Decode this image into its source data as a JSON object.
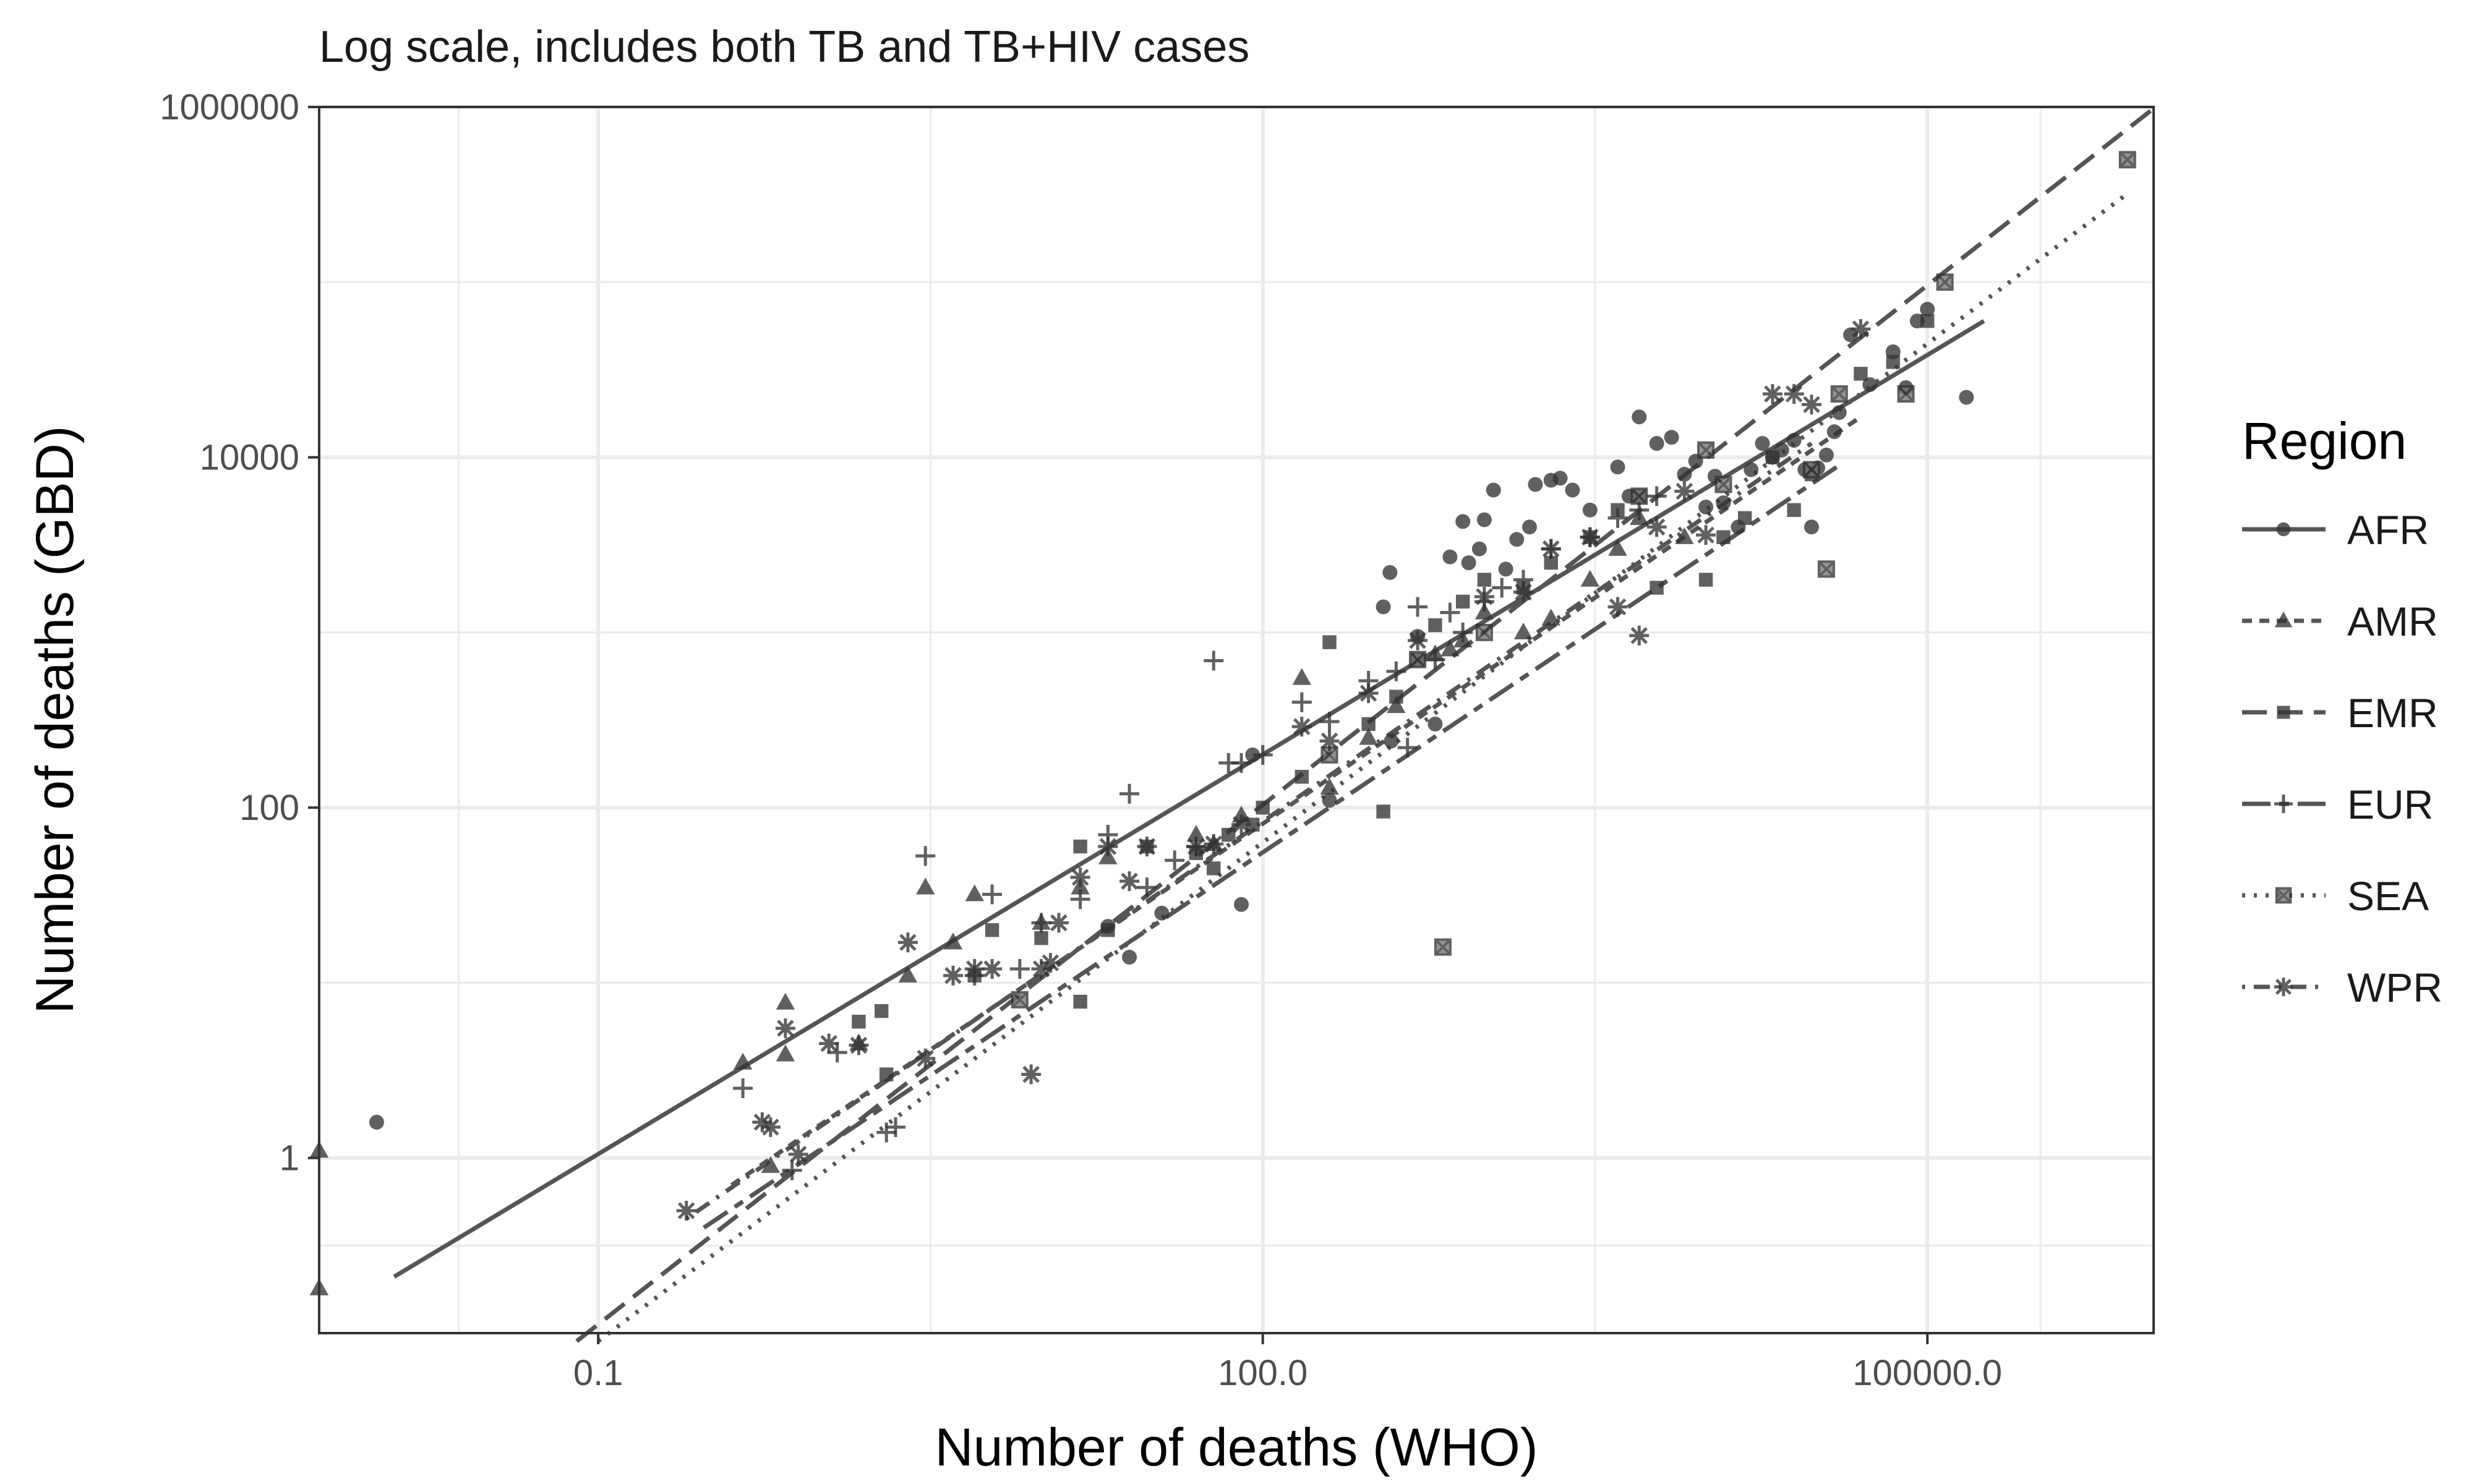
{
  "chart_data": {
    "type": "scatter",
    "subtitle": "Log scale, includes both TB and TB+HIV cases",
    "xlabel": "Number of deaths (WHO)",
    "ylabel": "Number of deaths (GBD)",
    "x_scale": "log10",
    "y_scale": "log10",
    "xlim": [
      0.0055,
      1050000
    ],
    "ylim": [
      0.1,
      1000000
    ],
    "x_ticks": [
      {
        "value": 0.1,
        "label": "0.1"
      },
      {
        "value": 100,
        "label": "100.0"
      },
      {
        "value": 100000,
        "label": "100000.0"
      }
    ],
    "y_ticks": [
      {
        "value": 1,
        "label": "1"
      },
      {
        "value": 100,
        "label": "100"
      },
      {
        "value": 10000,
        "label": "10000"
      },
      {
        "value": 1000000,
        "label": "1000000"
      }
    ],
    "grid": true,
    "legend": {
      "title": "Region",
      "position": "right"
    },
    "series": [
      {
        "name": "AFR",
        "marker": "circle",
        "linetype": "solid",
        "fit": [
          [
            0.012,
            0.21
          ],
          [
            180000,
            60000
          ]
        ],
        "points": [
          [
            0.01,
            1.6
          ],
          [
            20,
            21
          ],
          [
            25,
            14
          ],
          [
            35,
            25
          ],
          [
            80,
            28
          ],
          [
            90,
            200
          ],
          [
            200,
            110
          ],
          [
            350,
            1400
          ],
          [
            375,
            2200
          ],
          [
            380,
            240
          ],
          [
            500,
            950
          ],
          [
            600,
            300
          ],
          [
            700,
            2700
          ],
          [
            800,
            4300
          ],
          [
            850,
            2500
          ],
          [
            950,
            3000
          ],
          [
            1000,
            4400
          ],
          [
            1100,
            6500
          ],
          [
            1250,
            2300
          ],
          [
            1400,
            3400
          ],
          [
            1600,
            4000
          ],
          [
            1700,
            7000
          ],
          [
            2000,
            7400
          ],
          [
            2200,
            7600
          ],
          [
            2500,
            6500
          ],
          [
            3000,
            5000
          ],
          [
            4000,
            8800
          ],
          [
            4500,
            6000
          ],
          [
            5000,
            17000
          ],
          [
            6000,
            12000
          ],
          [
            7000,
            13000
          ],
          [
            8000,
            8000
          ],
          [
            9000,
            9500
          ],
          [
            10000,
            5200
          ],
          [
            11000,
            7800
          ],
          [
            12000,
            5500
          ],
          [
            14000,
            4000
          ],
          [
            16000,
            8500
          ],
          [
            18000,
            12000
          ],
          [
            20000,
            10000
          ],
          [
            22000,
            11000
          ],
          [
            25000,
            12500
          ],
          [
            28000,
            8500
          ],
          [
            30000,
            4000
          ],
          [
            32000,
            8700
          ],
          [
            35000,
            10300
          ],
          [
            38000,
            14000
          ],
          [
            40000,
            18000
          ],
          [
            45000,
            50000
          ],
          [
            55000,
            26000
          ],
          [
            70000,
            40000
          ],
          [
            80000,
            25000
          ],
          [
            90000,
            60000
          ],
          [
            100000,
            70000
          ],
          [
            150000,
            22000
          ]
        ]
      },
      {
        "name": "AMR",
        "marker": "triangle",
        "linetype": "dashed",
        "fit": [
          [
            0.4,
            0.7
          ],
          [
            50000,
            17000
          ]
        ],
        "points": [
          [
            0.0055,
            1.1
          ],
          [
            0.0055,
            0.18
          ],
          [
            0.45,
            3.5
          ],
          [
            0.6,
            0.9
          ],
          [
            0.7,
            7.7
          ],
          [
            0.7,
            3.9
          ],
          [
            1.5,
            4.5
          ],
          [
            2.5,
            11
          ],
          [
            3,
            35
          ],
          [
            4,
            17
          ],
          [
            5,
            32
          ],
          [
            10,
            22
          ],
          [
            15,
            35
          ],
          [
            20,
            52
          ],
          [
            50,
            70
          ],
          [
            60,
            62
          ],
          [
            80,
            90
          ],
          [
            150,
            550
          ],
          [
            200,
            130
          ],
          [
            300,
            250
          ],
          [
            400,
            380
          ],
          [
            600,
            750
          ],
          [
            700,
            800
          ],
          [
            800,
            900
          ],
          [
            1000,
            1300
          ],
          [
            1500,
            1000
          ],
          [
            2000,
            1200
          ],
          [
            3000,
            2000
          ],
          [
            4000,
            3000
          ],
          [
            5000,
            4500
          ],
          [
            8000,
            3500
          ]
        ]
      },
      {
        "name": "EMR",
        "marker": "square",
        "linetype": "longdash",
        "fit": [
          [
            0.08,
            0.09
          ],
          [
            1050000,
            980000
          ]
        ],
        "points": [
          [
            1.5,
            6
          ],
          [
            1.9,
            6.9
          ],
          [
            2,
            3
          ],
          [
            5,
            11
          ],
          [
            6,
            20
          ],
          [
            10,
            18
          ],
          [
            15,
            60
          ],
          [
            15,
            7.8
          ],
          [
            20,
            20
          ],
          [
            30,
            60
          ],
          [
            50,
            55
          ],
          [
            60,
            45
          ],
          [
            70,
            70
          ],
          [
            90,
            80
          ],
          [
            100,
            100
          ],
          [
            150,
            150
          ],
          [
            200,
            880
          ],
          [
            300,
            300
          ],
          [
            350,
            95
          ],
          [
            400,
            430
          ],
          [
            500,
            700
          ],
          [
            600,
            1100
          ],
          [
            800,
            1500
          ],
          [
            1000,
            2000
          ],
          [
            1500,
            1800
          ],
          [
            2000,
            2500
          ],
          [
            3000,
            3500
          ],
          [
            4000,
            5000
          ],
          [
            5000,
            6000
          ],
          [
            6000,
            1800
          ],
          [
            10000,
            2000
          ],
          [
            12000,
            3500
          ],
          [
            15000,
            4500
          ],
          [
            20000,
            10000
          ],
          [
            25000,
            5000
          ],
          [
            30000,
            8000
          ],
          [
            50000,
            30000
          ],
          [
            70000,
            35000
          ],
          [
            100000,
            60000
          ]
        ]
      },
      {
        "name": "EUR",
        "marker": "plus",
        "linetype": "twodash",
        "fit": [
          [
            0.3,
            0.4
          ],
          [
            40000,
            9000
          ]
        ],
        "points": [
          [
            0.45,
            2.5
          ],
          [
            0.75,
            0.85
          ],
          [
            1.2,
            4
          ],
          [
            2,
            1.4
          ],
          [
            2.2,
            1.5
          ],
          [
            3,
            53
          ],
          [
            5,
            11
          ],
          [
            6,
            32
          ],
          [
            8,
            12
          ],
          [
            10,
            22
          ],
          [
            15,
            30
          ],
          [
            20,
            70
          ],
          [
            25,
            120
          ],
          [
            30,
            35
          ],
          [
            40,
            50
          ],
          [
            50,
            60
          ],
          [
            60,
            690
          ],
          [
            70,
            180
          ],
          [
            80,
            180
          ],
          [
            100,
            200
          ],
          [
            150,
            400
          ],
          [
            200,
            310
          ],
          [
            300,
            530
          ],
          [
            400,
            600
          ],
          [
            450,
            220
          ],
          [
            500,
            1400
          ],
          [
            600,
            700
          ],
          [
            700,
            1300
          ],
          [
            800,
            1000
          ],
          [
            1000,
            1500
          ],
          [
            1200,
            1800
          ],
          [
            1500,
            2000
          ],
          [
            2000,
            3000
          ],
          [
            3000,
            3500
          ],
          [
            4000,
            4500
          ],
          [
            5000,
            5000
          ],
          [
            6000,
            6000
          ]
        ]
      },
      {
        "name": "SEA",
        "marker": "boxed-x",
        "linetype": "dotted",
        "fit": [
          [
            0.1,
            0.09
          ],
          [
            800000,
            320000
          ]
        ],
        "points": [
          [
            8,
            8
          ],
          [
            200,
            200
          ],
          [
            500,
            700
          ],
          [
            650,
            16
          ],
          [
            1000,
            1000
          ],
          [
            5000,
            6000
          ],
          [
            10000,
            11000
          ],
          [
            12000,
            7000
          ],
          [
            30000,
            8500
          ],
          [
            35000,
            2300
          ],
          [
            40000,
            23000
          ],
          [
            80000,
            23000
          ],
          [
            120000,
            100000
          ],
          [
            800000,
            500000
          ]
        ]
      },
      {
        "name": "WPR",
        "marker": "asterisk",
        "linetype": "dotdash",
        "fit": [
          [
            0.25,
            0.45
          ],
          [
            30000,
            12000
          ]
        ],
        "points": [
          [
            0.25,
            0.5
          ],
          [
            0.55,
            1.6
          ],
          [
            0.6,
            1.5
          ],
          [
            0.7,
            5.5
          ],
          [
            0.8,
            1.05
          ],
          [
            1.1,
            4.5
          ],
          [
            1.5,
            4.4
          ],
          [
            2.5,
            17
          ],
          [
            3,
            3.7
          ],
          [
            4,
            11
          ],
          [
            5,
            12
          ],
          [
            6,
            12
          ],
          [
            9,
            3
          ],
          [
            10,
            12
          ],
          [
            11,
            13
          ],
          [
            12,
            22
          ],
          [
            15,
            40
          ],
          [
            20,
            60
          ],
          [
            25,
            38
          ],
          [
            30,
            60
          ],
          [
            50,
            60
          ],
          [
            60,
            62
          ],
          [
            80,
            80
          ],
          [
            150,
            290
          ],
          [
            200,
            240
          ],
          [
            300,
            450
          ],
          [
            500,
            900
          ],
          [
            1000,
            1600
          ],
          [
            1500,
            1700
          ],
          [
            2000,
            3000
          ],
          [
            3000,
            3500
          ],
          [
            4000,
            1400
          ],
          [
            5000,
            960
          ],
          [
            6000,
            4000
          ],
          [
            8000,
            6400
          ],
          [
            10000,
            3600
          ],
          [
            20000,
            23000
          ],
          [
            25000,
            23000
          ],
          [
            30000,
            20000
          ],
          [
            50000,
            54000
          ]
        ]
      }
    ]
  }
}
